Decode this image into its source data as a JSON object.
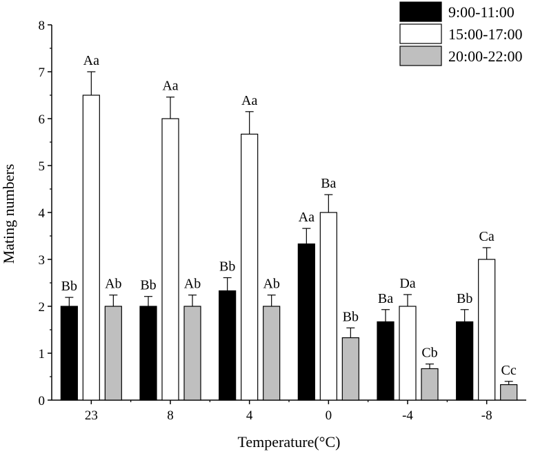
{
  "chart_data": {
    "type": "bar",
    "xlabel": "Temperature(°C)",
    "ylabel": "Mating numbers",
    "ylim": [
      0,
      8
    ],
    "yticks": [
      0,
      1,
      2,
      3,
      4,
      5,
      6,
      7,
      8
    ],
    "categories": [
      "23",
      "8",
      "4",
      "0",
      "-4",
      "-8"
    ],
    "legend_position": "top-right",
    "grid": false,
    "series": [
      {
        "name": "9:00-11:00",
        "color": "#000000",
        "values": [
          2.0,
          2.0,
          2.33,
          3.33,
          1.67,
          1.67
        ],
        "errors": [
          0.19,
          0.21,
          0.28,
          0.33,
          0.26,
          0.26
        ],
        "labels": [
          "Bb",
          "Bb",
          "Bb",
          "Aa",
          "Ba",
          "Bb"
        ]
      },
      {
        "name": "15:00-17:00",
        "color": "#ffffff",
        "values": [
          6.5,
          6.0,
          5.67,
          4.0,
          2.0,
          3.0
        ],
        "errors": [
          0.5,
          0.46,
          0.48,
          0.38,
          0.25,
          0.25
        ],
        "labels": [
          "Aa",
          "Aa",
          "Aa",
          "Ba",
          "Da",
          "Ca"
        ]
      },
      {
        "name": "20:00-22:00",
        "color": "#bfbfbf",
        "values": [
          2.0,
          2.0,
          2.0,
          1.33,
          0.67,
          0.33
        ],
        "errors": [
          0.24,
          0.24,
          0.24,
          0.21,
          0.1,
          0.07
        ],
        "labels": [
          "Ab",
          "Ab",
          "Ab",
          "Bb",
          "Cb",
          "Cc"
        ]
      }
    ]
  }
}
